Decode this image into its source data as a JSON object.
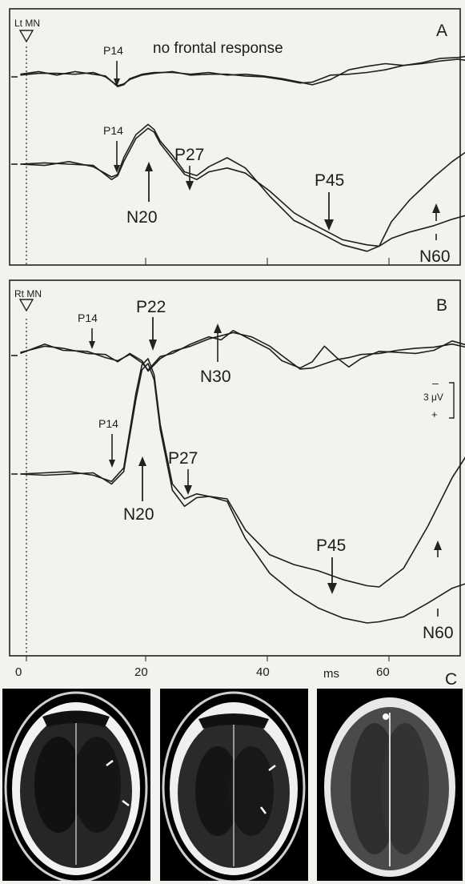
{
  "panels": {
    "A": {
      "letter": "A",
      "stim_label": "Lt MN",
      "note": "no frontal response",
      "labels": {
        "p14_top": "P14",
        "p14_bottom": "P14",
        "n20": "N20",
        "p27": "P27",
        "p45": "P45",
        "n60": "N60"
      }
    },
    "B": {
      "letter": "B",
      "stim_label": "Rt MN",
      "labels": {
        "p14_top": "P14",
        "p22": "P22",
        "n30": "N30",
        "p14_bottom": "P14",
        "n20": "N20",
        "p27": "P27",
        "p45": "P45",
        "n60": "N60"
      },
      "scale": {
        "minus": "–",
        "value": "3 μV",
        "plus": "+"
      }
    },
    "C": {
      "letter": "C"
    }
  },
  "axis": {
    "unit": "ms",
    "ticks": [
      "0",
      "20",
      "40",
      "60"
    ]
  },
  "chart_data": [
    {
      "type": "line",
      "panel": "A",
      "trace": "frontal",
      "xlim": [
        -4,
        73
      ],
      "series": [
        {
          "x": [
            -1,
            2,
            5,
            8,
            11,
            13,
            15,
            16,
            17,
            19,
            21,
            24,
            27,
            30,
            33,
            36,
            39,
            42,
            45,
            47,
            50,
            53,
            56,
            59,
            62,
            65,
            68,
            71,
            73
          ],
          "values": [
            0.3,
            0.6,
            0.2,
            0.6,
            0.3,
            0.1,
            -1.1,
            -0.9,
            -0.2,
            0.3,
            0.5,
            0.5,
            0.3,
            0.5,
            0.2,
            0.3,
            0.1,
            -0.2,
            -0.6,
            -0.9,
            -0.3,
            0.8,
            1.2,
            1.5,
            1.3,
            1.5,
            1.8,
            2.0,
            1.8
          ]
        },
        {
          "x": [
            -1,
            2,
            5,
            8,
            11,
            13,
            15,
            16,
            17,
            19,
            21,
            24,
            27,
            30,
            33,
            36,
            39,
            42,
            45,
            47,
            50,
            53,
            56,
            59,
            62,
            65,
            68,
            71,
            73
          ],
          "values": [
            0.2,
            0.4,
            0.4,
            0.3,
            0.5,
            0.0,
            -1.0,
            -0.8,
            -0.3,
            0.2,
            0.4,
            0.6,
            0.2,
            0.3,
            0.3,
            0.1,
            0.0,
            -0.3,
            -0.7,
            -0.6,
            0.2,
            0.3,
            0.5,
            0.8,
            1.3,
            1.6,
            2.1,
            2.2,
            2.4
          ]
        }
      ]
    },
    {
      "type": "line",
      "panel": "A",
      "trace": "parietal",
      "xlim": [
        -4,
        73
      ],
      "series": [
        {
          "x": [
            -1,
            3,
            7,
            11,
            14,
            15,
            16,
            18,
            20,
            21,
            22,
            24,
            26,
            28,
            30,
            33,
            36,
            40,
            44,
            48,
            52,
            56,
            58,
            60,
            63,
            67,
            70,
            73
          ],
          "values": [
            0,
            -0.1,
            0.2,
            -0.2,
            -1.0,
            -0.8,
            0.5,
            2.3,
            3.1,
            2.7,
            1.8,
            0.7,
            -0.6,
            -0.9,
            -0.2,
            0.5,
            -0.3,
            -2.5,
            -4.4,
            -5.3,
            -6.3,
            -6.8,
            -6.4,
            -4.5,
            -2.8,
            -1.0,
            0.2,
            1.2
          ]
        },
        {
          "x": [
            -1,
            3,
            7,
            11,
            14,
            15,
            16,
            18,
            20,
            21,
            22,
            24,
            26,
            28,
            30,
            33,
            36,
            40,
            44,
            48,
            52,
            56,
            58,
            60,
            63,
            67,
            70,
            73
          ],
          "values": [
            0,
            0.1,
            0,
            -0.1,
            -1.2,
            -0.9,
            0.2,
            2.0,
            2.8,
            2.5,
            1.6,
            0.4,
            -0.8,
            -1.2,
            -0.6,
            -0.3,
            -0.7,
            -2.1,
            -3.8,
            -4.9,
            -5.9,
            -6.3,
            -6.4,
            -5.8,
            -5.3,
            -4.8,
            -4.3,
            -3.9
          ]
        }
      ]
    },
    {
      "type": "line",
      "panel": "B",
      "trace": "frontal",
      "xlim": [
        -4,
        73
      ],
      "series": [
        {
          "x": [
            -1,
            3,
            6,
            10,
            13,
            15,
            17,
            19,
            20,
            22,
            24,
            27,
            30,
            32,
            34,
            37,
            40,
            42,
            45,
            47,
            49,
            51,
            53,
            55,
            58,
            61,
            64,
            67,
            70,
            73
          ],
          "values": [
            0.2,
            1.1,
            0.5,
            0.4,
            -0.2,
            -0.5,
            0.1,
            -0.7,
            -1.4,
            -0.1,
            0.2,
            1.1,
            1.8,
            1.5,
            2.4,
            1.5,
            0.6,
            -0.5,
            -1.2,
            -0.6,
            0.9,
            -0.2,
            -1.1,
            -0.3,
            0.4,
            0.3,
            0.2,
            0.5,
            1.4,
            0.9
          ]
        },
        {
          "x": [
            -1,
            3,
            6,
            10,
            13,
            15,
            17,
            19,
            20,
            22,
            24,
            27,
            30,
            32,
            34,
            37,
            40,
            42,
            45,
            47,
            49,
            51,
            53,
            55,
            58,
            61,
            64,
            67,
            70,
            73
          ],
          "values": [
            0.3,
            0.9,
            0.7,
            0.2,
            0.1,
            -0.6,
            0.2,
            -0.5,
            -1.5,
            -0.3,
            0.4,
            0.9,
            1.6,
            1.9,
            2.2,
            1.8,
            0.9,
            0.0,
            -1.3,
            -1.2,
            -0.8,
            -0.4,
            -0.2,
            0.1,
            0.2,
            0.5,
            0.7,
            0.8,
            1.1,
            0.7
          ]
        }
      ]
    },
    {
      "type": "line",
      "panel": "B",
      "trace": "parietal",
      "xlim": [
        -4,
        73
      ],
      "series": [
        {
          "x": [
            -1,
            3,
            7,
            11,
            14,
            16,
            18,
            19,
            20,
            21,
            22,
            24,
            26,
            28,
            30,
            33,
            36,
            40,
            44,
            48,
            52,
            56,
            58,
            62,
            66,
            70,
            73
          ],
          "values": [
            0,
            0.1,
            0.2,
            -0.1,
            -0.6,
            0.5,
            6.5,
            8.8,
            9.3,
            8.0,
            4.0,
            -0.8,
            -2.0,
            -1.6,
            -1.8,
            -2.0,
            -4.5,
            -6.5,
            -7.3,
            -7.8,
            -8.5,
            -9.0,
            -9.1,
            -7.6,
            -4.2,
            -0.3,
            2.0
          ]
        },
        {
          "x": [
            -1,
            3,
            7,
            11,
            14,
            16,
            18,
            19,
            20,
            21,
            22,
            24,
            26,
            28,
            30,
            33,
            36,
            40,
            44,
            48,
            52,
            56,
            58,
            62,
            66,
            70,
            73
          ],
          "values": [
            0,
            -0.1,
            0,
            0.1,
            -0.8,
            0.2,
            6.0,
            8.4,
            8.9,
            7.6,
            3.6,
            -1.3,
            -2.6,
            -1.9,
            -1.8,
            -2.2,
            -5.2,
            -8.0,
            -9.6,
            -10.8,
            -11.6,
            -12.0,
            -11.9,
            -11.5,
            -10.4,
            -9.2,
            -8.7
          ]
        }
      ]
    }
  ]
}
